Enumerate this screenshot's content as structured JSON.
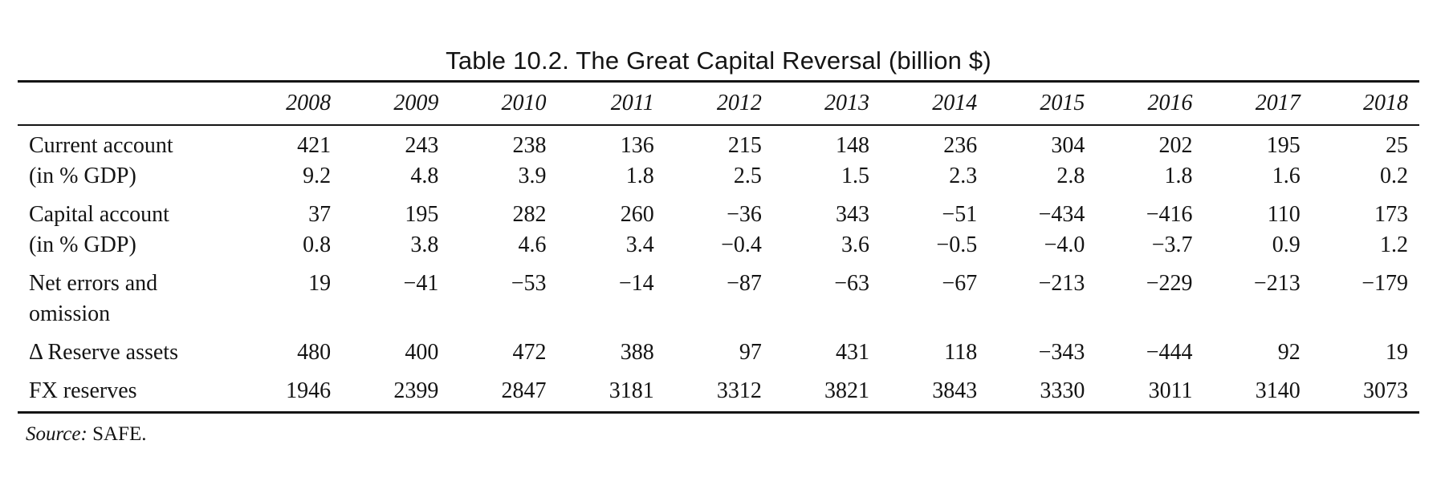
{
  "table": {
    "title": "Table 10.2. The Great Capital Reversal (billion $)",
    "years": [
      "2008",
      "2009",
      "2010",
      "2011",
      "2012",
      "2013",
      "2014",
      "2015",
      "2016",
      "2017",
      "2018"
    ],
    "rows": [
      {
        "label": "Current account",
        "values": [
          "421",
          "243",
          "238",
          "136",
          "215",
          "148",
          "236",
          "304",
          "202",
          "195",
          "25"
        ]
      },
      {
        "label": "(in % GDP)",
        "values": [
          "9.2",
          "4.8",
          "3.9",
          "1.8",
          "2.5",
          "1.5",
          "2.3",
          "2.8",
          "1.8",
          "1.6",
          "0.2"
        ]
      },
      {
        "label": "Capital account",
        "values": [
          "37",
          "195",
          "282",
          "260",
          "−36",
          "343",
          "−51",
          "−434",
          "−416",
          "110",
          "173"
        ]
      },
      {
        "label": "(in % GDP)",
        "values": [
          "0.8",
          "3.8",
          "4.6",
          "3.4",
          "−0.4",
          "3.6",
          "−0.5",
          "−4.0",
          "−3.7",
          "0.9",
          "1.2"
        ]
      },
      {
        "label": "Net errors and",
        "values": [
          "19",
          "−41",
          "−53",
          "−14",
          "−87",
          "−63",
          "−67",
          "−213",
          "−229",
          "−213",
          "−179"
        ]
      },
      {
        "label": "omission",
        "values": [
          "",
          "",
          "",
          "",
          "",
          "",
          "",
          "",
          "",
          "",
          ""
        ]
      },
      {
        "label": "Δ Reserve assets",
        "values": [
          "480",
          "400",
          "472",
          "388",
          "97",
          "431",
          "118",
          "−343",
          "−444",
          "92",
          "19"
        ]
      },
      {
        "label": "FX reserves",
        "values": [
          "1946",
          "2399",
          "2847",
          "3181",
          "3312",
          "3821",
          "3843",
          "3330",
          "3011",
          "3140",
          "3073"
        ]
      }
    ],
    "source_label": "Source:",
    "source_text": " SAFE."
  }
}
